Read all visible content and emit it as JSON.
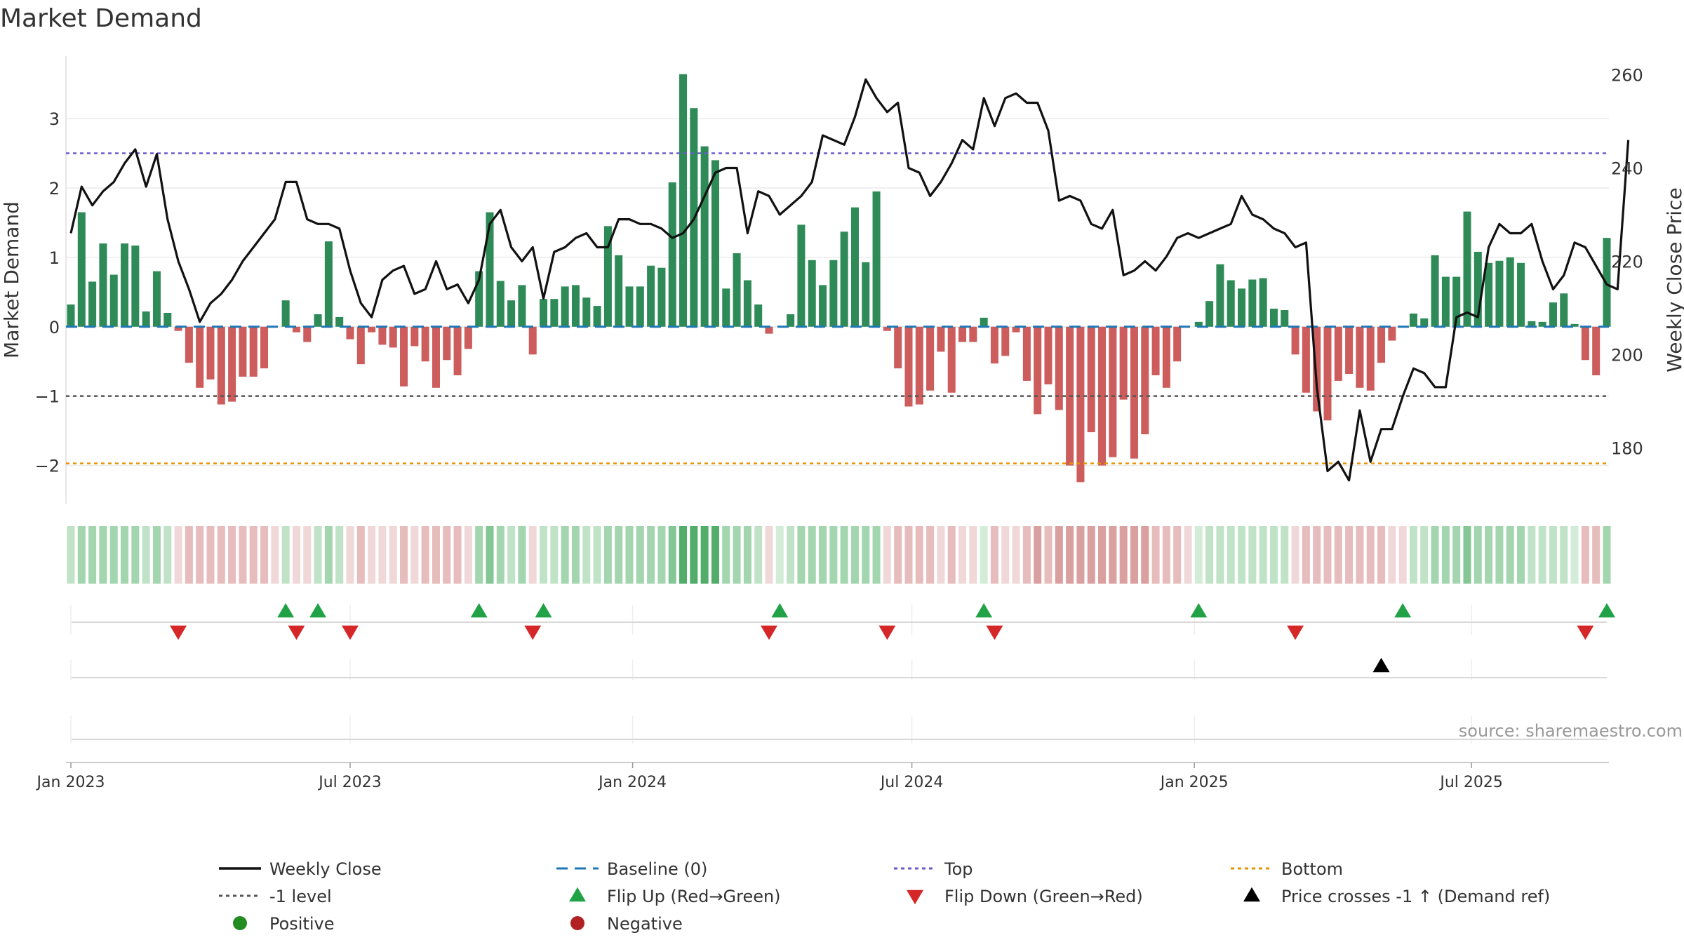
{
  "chart_data": {
    "type": "bar+line",
    "title": "Market Demand",
    "ylabel_left": "Market Demand",
    "ylabel_right": "Weekly Close Price",
    "ylim_left": [
      -2.55,
      3.9
    ],
    "ylim_right": [
      168,
      264
    ],
    "yticks_left": [
      3,
      2,
      1,
      0,
      -1,
      -2
    ],
    "yticks_right": [
      260,
      240,
      220,
      200,
      180
    ],
    "x_start": "2022-12-26",
    "week_interval": 1,
    "x_ticks": [
      {
        "label": "Jan 2023",
        "week": 1
      },
      {
        "label": "Jul 2023",
        "week": 27
      },
      {
        "label": "Jan 2024",
        "week": 53.3
      },
      {
        "label": "Jul 2024",
        "week": 79.3
      },
      {
        "label": "Jan 2025",
        "week": 105.6
      },
      {
        "label": "Jul 2025",
        "week": 131.4
      }
    ],
    "reference_lines": {
      "top": 2.5,
      "bottom": -1.97,
      "minus_one": -1.0,
      "baseline": 0
    },
    "demand": [
      0.32,
      1.65,
      0.65,
      1.2,
      0.75,
      1.2,
      1.17,
      0.22,
      0.8,
      0.2,
      -0.06,
      -0.52,
      -0.88,
      -0.76,
      -1.12,
      -1.08,
      -0.72,
      -0.72,
      -0.6,
      0.0,
      0.38,
      -0.08,
      -0.22,
      0.18,
      1.23,
      0.14,
      -0.18,
      -0.54,
      -0.08,
      -0.26,
      -0.3,
      -0.86,
      -0.28,
      -0.5,
      -0.88,
      -0.48,
      -0.7,
      -0.32,
      0.8,
      1.65,
      0.66,
      0.38,
      0.6,
      -0.4,
      0.4,
      0.4,
      0.58,
      0.6,
      0.42,
      0.3,
      1.45,
      1.03,
      0.58,
      0.58,
      0.88,
      0.85,
      2.08,
      3.64,
      3.15,
      2.6,
      2.4,
      0.55,
      1.06,
      0.67,
      0.32,
      -0.1,
      0.0,
      0.18,
      1.47,
      0.96,
      0.6,
      0.96,
      1.37,
      1.72,
      0.93,
      1.95,
      -0.06,
      -0.6,
      -1.15,
      -1.12,
      -0.92,
      -0.36,
      -0.95,
      -0.22,
      -0.22,
      0.13,
      -0.53,
      -0.42,
      -0.08,
      -0.78,
      -1.26,
      -0.83,
      -1.2,
      -2.0,
      -2.24,
      -1.52,
      -2.0,
      -1.88,
      -1.05,
      -1.9,
      -1.55,
      -0.7,
      -0.88,
      -0.5,
      0.0,
      0.07,
      0.37,
      0.9,
      0.67,
      0.55,
      0.68,
      0.7,
      0.26,
      0.24,
      -0.4,
      -0.95,
      -1.22,
      -1.35,
      -0.78,
      -0.68,
      -0.88,
      -0.92,
      -0.52,
      -0.2,
      0.0,
      0.19,
      0.12,
      1.03,
      0.72,
      0.72,
      1.66,
      1.08,
      0.92,
      0.95,
      1.0,
      0.92,
      0.08,
      0.07,
      0.35,
      0.48,
      0.04,
      -0.48,
      -0.7,
      1.28
    ],
    "close": [
      226,
      236,
      232,
      235,
      237,
      241,
      244,
      236,
      243,
      229,
      220,
      214,
      207,
      211,
      213,
      216,
      220,
      223,
      226,
      229,
      237,
      237,
      229,
      228,
      228,
      227,
      218,
      211,
      208,
      216,
      218,
      219,
      213,
      214,
      220,
      214,
      215,
      211,
      216,
      228,
      231,
      223,
      220,
      223,
      212,
      222,
      223,
      225,
      226,
      223,
      223,
      229,
      229,
      228,
      228,
      227,
      225,
      226,
      229,
      234,
      239,
      240,
      240,
      226,
      235,
      234,
      230,
      232,
      234,
      237,
      247,
      246,
      245,
      251,
      259,
      255,
      252,
      254,
      240,
      239,
      234,
      237,
      241,
      246,
      244,
      255,
      249,
      255,
      256,
      254,
      254,
      248,
      233,
      234,
      233,
      228,
      227,
      231,
      217,
      218,
      220,
      218,
      221,
      225,
      226,
      225,
      226,
      227,
      228,
      234,
      230,
      229,
      227,
      226,
      223,
      224,
      193,
      175,
      177,
      173,
      188,
      177,
      184,
      184,
      191,
      197,
      196,
      193,
      193,
      208,
      209,
      208,
      223,
      228,
      226,
      226,
      228,
      220,
      214,
      217,
      224,
      223,
      219,
      215,
      214,
      246
    ],
    "heat_shade": [
      2,
      3,
      3,
      3,
      3,
      3,
      3,
      2,
      3,
      2,
      -1,
      -2,
      -2,
      -2,
      -2,
      -2,
      -2,
      -2,
      -2,
      -1,
      2,
      -1,
      -1,
      2,
      3,
      2,
      -1,
      -2,
      -1,
      -1,
      -1,
      -2,
      -1,
      -2,
      -2,
      -2,
      -2,
      -1,
      3,
      4,
      3,
      2,
      3,
      -1,
      2,
      2,
      3,
      3,
      2,
      2,
      3,
      3,
      3,
      3,
      3,
      3,
      4,
      5,
      5,
      5,
      5,
      3,
      3,
      3,
      2,
      -1,
      1,
      2,
      3,
      3,
      3,
      3,
      3,
      3,
      3,
      3,
      -1,
      -2,
      -2,
      -2,
      -2,
      -1,
      -2,
      -1,
      -1,
      1,
      -2,
      -1,
      -1,
      -2,
      -3,
      -2,
      -3,
      -3,
      -3,
      -3,
      -3,
      -3,
      -3,
      -3,
      -3,
      -2,
      -2,
      -2,
      -1,
      1,
      2,
      2,
      2,
      2,
      2,
      2,
      2,
      2,
      -1,
      -2,
      -2,
      -2,
      -2,
      -2,
      -2,
      -2,
      -2,
      -1,
      -1,
      2,
      2,
      3,
      3,
      3,
      4,
      3,
      3,
      3,
      3,
      3,
      2,
      2,
      2,
      2,
      1,
      -2,
      -2,
      3
    ],
    "flip_up_weeks": [
      20,
      23,
      38,
      44,
      66,
      85,
      105,
      124,
      143
    ],
    "flip_down_weeks": [
      10,
      21,
      26,
      43,
      65,
      76,
      86,
      114,
      141
    ],
    "cross_weeks": [
      122
    ],
    "source": "source: sharemaestro.com",
    "legend": [
      {
        "label": "Weekly Close",
        "symbol": "line-black"
      },
      {
        "label": "Baseline (0)",
        "symbol": "dash-blue"
      },
      {
        "label": "Top",
        "symbol": "dot-purple"
      },
      {
        "label": "Bottom",
        "symbol": "dot-orange"
      },
      {
        "label": "-1 level",
        "symbol": "dot-gray"
      },
      {
        "label": "Flip Up (Red→Green)",
        "symbol": "tri-up-green"
      },
      {
        "label": "Flip Down (Green→Red)",
        "symbol": "tri-down-red"
      },
      {
        "label": "Price crosses -1 ↑ (Demand ref)",
        "symbol": "tri-up-black"
      },
      {
        "label": "Positive",
        "symbol": "circle-green"
      },
      {
        "label": "Negative",
        "symbol": "circle-red"
      }
    ],
    "colors": {
      "bar_pos": "#2e8b57",
      "bar_neg": "#cd5c5c",
      "close_line": "#111111",
      "baseline": "#1f77b4",
      "top": "#6a5acd",
      "bottom": "#e69500",
      "minus_one": "#555555",
      "flip_up": "#22a246",
      "flip_down": "#d62728",
      "cross": "#000000",
      "positive_dot": "#228b22",
      "negative_dot": "#b22222"
    }
  }
}
